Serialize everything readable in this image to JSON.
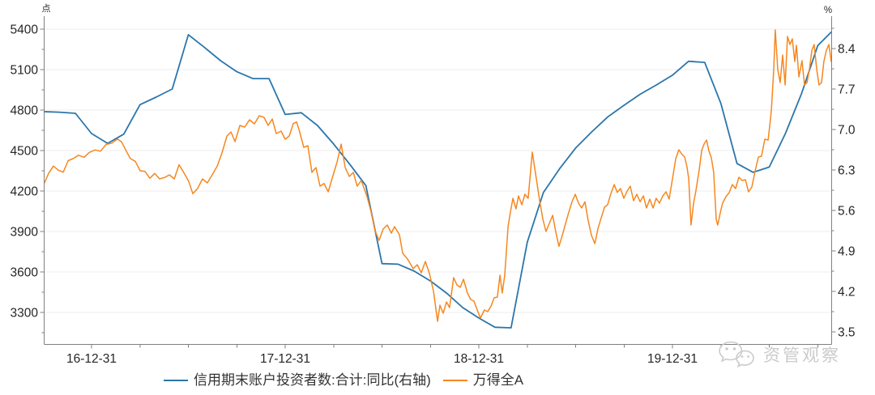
{
  "page": {
    "background": "#ffffff"
  },
  "legend": {
    "items": [
      {
        "label": "信用期末账户投资者数:合计:同比(右轴)",
        "color": "#2b76ab"
      },
      {
        "label": "万得全A",
        "color": "#f6871f"
      }
    ]
  },
  "watermark": {
    "text": "资管观察",
    "icon": "wechat-icon",
    "color": "#cbcbcb"
  },
  "chart_data": {
    "type": "line",
    "title": "",
    "legend_position": "bottom-center",
    "grid": {
      "horizontal": true,
      "color": "#ececec",
      "at": "left_axis_ticks"
    },
    "x_axis": {
      "tick_labels": [
        "16-12-31",
        "17-12-31",
        "18-12-31",
        "19-12-31"
      ],
      "tick_positions": [
        2017.0,
        2018.0,
        2019.0,
        2020.0
      ],
      "minor_tick_interval_years": 0.25,
      "range_decimal_years": [
        2016.75,
        2020.84
      ]
    },
    "left_axis": {
      "unit": "点",
      "ticks": [
        3300,
        3600,
        3900,
        4200,
        4500,
        4800,
        5100,
        5400
      ],
      "range": [
        3069,
        5496
      ]
    },
    "right_axis": {
      "unit": "%",
      "ticks": [
        3.5,
        4.2,
        4.9,
        5.6,
        6.3,
        7.0,
        7.7,
        8.4
      ],
      "range": [
        3.28,
        8.96
      ]
    },
    "series": [
      {
        "name": "信用期末账户投资者数:合计:同比(右轴)",
        "axis": "right",
        "color": "#2b76ab",
        "stroke_width": 1.8,
        "frequency": "monthly",
        "points": [
          [
            "2016-09",
            7.31
          ],
          [
            "2016-10",
            7.3
          ],
          [
            "2016-11",
            7.28
          ],
          [
            "2016-12",
            6.93
          ],
          [
            "2017-01",
            6.76
          ],
          [
            "2017-02",
            6.92
          ],
          [
            "2017-03",
            7.43
          ],
          [
            "2017-04",
            7.56
          ],
          [
            "2017-05",
            7.7
          ],
          [
            "2017-06",
            8.64
          ],
          [
            "2017-07",
            8.42
          ],
          [
            "2017-08",
            8.19
          ],
          [
            "2017-09",
            8.0
          ],
          [
            "2017-10",
            7.88
          ],
          [
            "2017-11",
            7.88
          ],
          [
            "2017-12",
            7.26
          ],
          [
            "2018-01",
            7.29
          ],
          [
            "2018-02",
            7.07
          ],
          [
            "2018-03",
            6.75
          ],
          [
            "2018-04",
            6.4
          ],
          [
            "2018-05",
            6.03
          ],
          [
            "2018-06",
            4.68
          ],
          [
            "2018-07",
            4.67
          ],
          [
            "2018-08",
            4.55
          ],
          [
            "2018-09",
            4.38
          ],
          [
            "2018-10",
            4.17
          ],
          [
            "2018-11",
            3.92
          ],
          [
            "2018-12",
            3.74
          ],
          [
            "2019-01",
            3.58
          ],
          [
            "2019-02",
            3.57
          ],
          [
            "2019-03",
            5.05
          ],
          [
            "2019-04",
            5.91
          ],
          [
            "2019-05",
            6.32
          ],
          [
            "2019-06",
            6.68
          ],
          [
            "2019-07",
            6.96
          ],
          [
            "2019-08",
            7.22
          ],
          [
            "2019-09",
            7.42
          ],
          [
            "2019-10",
            7.61
          ],
          [
            "2019-11",
            7.77
          ],
          [
            "2019-12",
            7.94
          ],
          [
            "2020-01",
            8.18
          ],
          [
            "2020-02",
            8.16
          ],
          [
            "2020-03",
            7.45
          ],
          [
            "2020-04",
            6.41
          ],
          [
            "2020-05",
            6.26
          ],
          [
            "2020-06",
            6.35
          ],
          [
            "2020-07",
            6.93
          ],
          [
            "2020-08",
            7.62
          ],
          [
            "2020-09",
            8.45
          ],
          [
            "2020-10",
            8.73
          ]
        ]
      },
      {
        "name": "万得全A",
        "axis": "left",
        "color": "#f6871f",
        "stroke_width": 1.5,
        "frequency": "daily",
        "points": [
          [
            2016.757,
            4260
          ],
          [
            2016.778,
            4330
          ],
          [
            2016.803,
            4385
          ],
          [
            2016.828,
            4355
          ],
          [
            2016.854,
            4340
          ],
          [
            2016.879,
            4425
          ],
          [
            2016.904,
            4440
          ],
          [
            2016.933,
            4465
          ],
          [
            2016.962,
            4450
          ],
          [
            2016.987,
            4485
          ],
          [
            2017.017,
            4505
          ],
          [
            2017.046,
            4495
          ],
          [
            2017.075,
            4545
          ],
          [
            2017.105,
            4555
          ],
          [
            2017.134,
            4585
          ],
          [
            2017.155,
            4565
          ],
          [
            2017.176,
            4505
          ],
          [
            2017.201,
            4440
          ],
          [
            2017.226,
            4420
          ],
          [
            2017.251,
            4350
          ],
          [
            2017.276,
            4345
          ],
          [
            2017.301,
            4295
          ],
          [
            2017.326,
            4330
          ],
          [
            2017.351,
            4290
          ],
          [
            2017.377,
            4300
          ],
          [
            2017.402,
            4320
          ],
          [
            2017.427,
            4290
          ],
          [
            2017.452,
            4395
          ],
          [
            2017.477,
            4335
          ],
          [
            2017.502,
            4270
          ],
          [
            2017.523,
            4180
          ],
          [
            2017.548,
            4220
          ],
          [
            2017.573,
            4290
          ],
          [
            2017.598,
            4260
          ],
          [
            2017.623,
            4320
          ],
          [
            2017.649,
            4385
          ],
          [
            2017.674,
            4485
          ],
          [
            2017.699,
            4608
          ],
          [
            2017.72,
            4638
          ],
          [
            2017.741,
            4566
          ],
          [
            2017.766,
            4686
          ],
          [
            2017.791,
            4674
          ],
          [
            2017.816,
            4728
          ],
          [
            2017.841,
            4698
          ],
          [
            2017.866,
            4758
          ],
          [
            2017.891,
            4746
          ],
          [
            2017.912,
            4686
          ],
          [
            2017.933,
            4734
          ],
          [
            2017.954,
            4626
          ],
          [
            2017.979,
            4644
          ],
          [
            2018.0,
            4584
          ],
          [
            2018.021,
            4608
          ],
          [
            2018.042,
            4700
          ],
          [
            2018.059,
            4712
          ],
          [
            2018.075,
            4638
          ],
          [
            2018.096,
            4524
          ],
          [
            2018.117,
            4536
          ],
          [
            2018.138,
            4338
          ],
          [
            2018.159,
            4374
          ],
          [
            2018.18,
            4236
          ],
          [
            2018.201,
            4256
          ],
          [
            2018.222,
            4194
          ],
          [
            2018.243,
            4296
          ],
          [
            2018.268,
            4416
          ],
          [
            2018.289,
            4548
          ],
          [
            2018.31,
            4374
          ],
          [
            2018.331,
            4308
          ],
          [
            2018.352,
            4338
          ],
          [
            2018.372,
            4236
          ],
          [
            2018.393,
            4278
          ],
          [
            2018.423,
            4158
          ],
          [
            2018.444,
            4044
          ],
          [
            2018.464,
            3906
          ],
          [
            2018.485,
            3834
          ],
          [
            2018.506,
            3918
          ],
          [
            2018.527,
            3948
          ],
          [
            2018.548,
            3888
          ],
          [
            2018.565,
            3936
          ],
          [
            2018.59,
            3876
          ],
          [
            2018.607,
            3738
          ],
          [
            2018.632,
            3696
          ],
          [
            2018.661,
            3624
          ],
          [
            2018.682,
            3654
          ],
          [
            2018.703,
            3594
          ],
          [
            2018.724,
            3678
          ],
          [
            2018.745,
            3588
          ],
          [
            2018.766,
            3456
          ],
          [
            2018.787,
            3234
          ],
          [
            2018.799,
            3354
          ],
          [
            2018.816,
            3294
          ],
          [
            2018.833,
            3378
          ],
          [
            2018.849,
            3336
          ],
          [
            2018.87,
            3558
          ],
          [
            2018.887,
            3504
          ],
          [
            2018.904,
            3486
          ],
          [
            2018.921,
            3546
          ],
          [
            2018.941,
            3444
          ],
          [
            2018.958,
            3396
          ],
          [
            2018.975,
            3384
          ],
          [
            2018.992,
            3318
          ],
          [
            2019.008,
            3258
          ],
          [
            2019.029,
            3318
          ],
          [
            2019.046,
            3306
          ],
          [
            2019.063,
            3348
          ],
          [
            2019.079,
            3408
          ],
          [
            2019.096,
            3414
          ],
          [
            2019.109,
            3576
          ],
          [
            2019.121,
            3444
          ],
          [
            2019.134,
            3576
          ],
          [
            2019.151,
            3936
          ],
          [
            2019.163,
            4044
          ],
          [
            2019.176,
            4146
          ],
          [
            2019.192,
            4068
          ],
          [
            2019.205,
            4164
          ],
          [
            2019.222,
            4098
          ],
          [
            2019.238,
            4176
          ],
          [
            2019.255,
            4146
          ],
          [
            2019.276,
            4488
          ],
          [
            2019.297,
            4290
          ],
          [
            2019.314,
            4130
          ],
          [
            2019.331,
            3990
          ],
          [
            2019.347,
            3900
          ],
          [
            2019.364,
            3960
          ],
          [
            2019.381,
            4020
          ],
          [
            2019.397,
            3900
          ],
          [
            2019.414,
            3790
          ],
          [
            2019.431,
            3870
          ],
          [
            2019.448,
            3960
          ],
          [
            2019.464,
            4040
          ],
          [
            2019.481,
            4120
          ],
          [
            2019.498,
            4176
          ],
          [
            2019.515,
            4110
          ],
          [
            2019.531,
            4074
          ],
          [
            2019.548,
            4120
          ],
          [
            2019.565,
            3980
          ],
          [
            2019.582,
            3870
          ],
          [
            2019.599,
            3810
          ],
          [
            2019.615,
            3920
          ],
          [
            2019.632,
            4000
          ],
          [
            2019.649,
            4080
          ],
          [
            2019.665,
            4098
          ],
          [
            2019.682,
            4180
          ],
          [
            2019.699,
            4248
          ],
          [
            2019.715,
            4190
          ],
          [
            2019.732,
            4218
          ],
          [
            2019.749,
            4146
          ],
          [
            2019.766,
            4200
          ],
          [
            2019.782,
            4236
          ],
          [
            2019.799,
            4128
          ],
          [
            2019.816,
            4176
          ],
          [
            2019.833,
            4120
          ],
          [
            2019.85,
            4164
          ],
          [
            2019.866,
            4074
          ],
          [
            2019.883,
            4140
          ],
          [
            2019.9,
            4074
          ],
          [
            2019.916,
            4146
          ],
          [
            2019.933,
            4110
          ],
          [
            2019.95,
            4164
          ],
          [
            2019.967,
            4194
          ],
          [
            2019.983,
            4140
          ],
          [
            2020.0,
            4290
          ],
          [
            2020.017,
            4440
          ],
          [
            2020.033,
            4506
          ],
          [
            2020.05,
            4470
          ],
          [
            2020.063,
            4452
          ],
          [
            2020.075,
            4380
          ],
          [
            2020.084,
            4290
          ],
          [
            2020.096,
            3948
          ],
          [
            2020.109,
            4110
          ],
          [
            2020.121,
            4200
          ],
          [
            2020.138,
            4356
          ],
          [
            2020.151,
            4500
          ],
          [
            2020.163,
            4548
          ],
          [
            2020.176,
            4578
          ],
          [
            2020.188,
            4500
          ],
          [
            2020.201,
            4446
          ],
          [
            2020.213,
            4338
          ],
          [
            2020.226,
            3990
          ],
          [
            2020.234,
            3948
          ],
          [
            2020.247,
            4038
          ],
          [
            2020.259,
            4110
          ],
          [
            2020.276,
            4158
          ],
          [
            2020.293,
            4188
          ],
          [
            2020.309,
            4248
          ],
          [
            2020.326,
            4218
          ],
          [
            2020.343,
            4302
          ],
          [
            2020.36,
            4278
          ],
          [
            2020.377,
            4284
          ],
          [
            2020.393,
            4194
          ],
          [
            2020.41,
            4230
          ],
          [
            2020.427,
            4350
          ],
          [
            2020.444,
            4452
          ],
          [
            2020.46,
            4458
          ],
          [
            2020.477,
            4584
          ],
          [
            2020.494,
            4578
          ],
          [
            2020.502,
            4680
          ],
          [
            2020.511,
            4800
          ],
          [
            2020.523,
            5100
          ],
          [
            2020.531,
            5394
          ],
          [
            2020.544,
            5100
          ],
          [
            2020.556,
            5004
          ],
          [
            2020.569,
            5208
          ],
          [
            2020.582,
            4986
          ],
          [
            2020.594,
            5346
          ],
          [
            2020.607,
            5286
          ],
          [
            2020.619,
            5328
          ],
          [
            2020.632,
            5160
          ],
          [
            2020.64,
            5280
          ],
          [
            2020.653,
            5046
          ],
          [
            2020.669,
            5166
          ],
          [
            2020.682,
            4986
          ],
          [
            2020.695,
            5004
          ],
          [
            2020.707,
            5100
          ],
          [
            2020.72,
            5244
          ],
          [
            2020.732,
            5286
          ],
          [
            2020.745,
            5100
          ],
          [
            2020.757,
            4986
          ],
          [
            2020.77,
            5004
          ],
          [
            2020.782,
            5160
          ],
          [
            2020.795,
            5244
          ],
          [
            2020.808,
            5286
          ],
          [
            2020.82,
            5160
          ],
          [
            2020.828,
            5226
          ]
        ]
      }
    ]
  }
}
